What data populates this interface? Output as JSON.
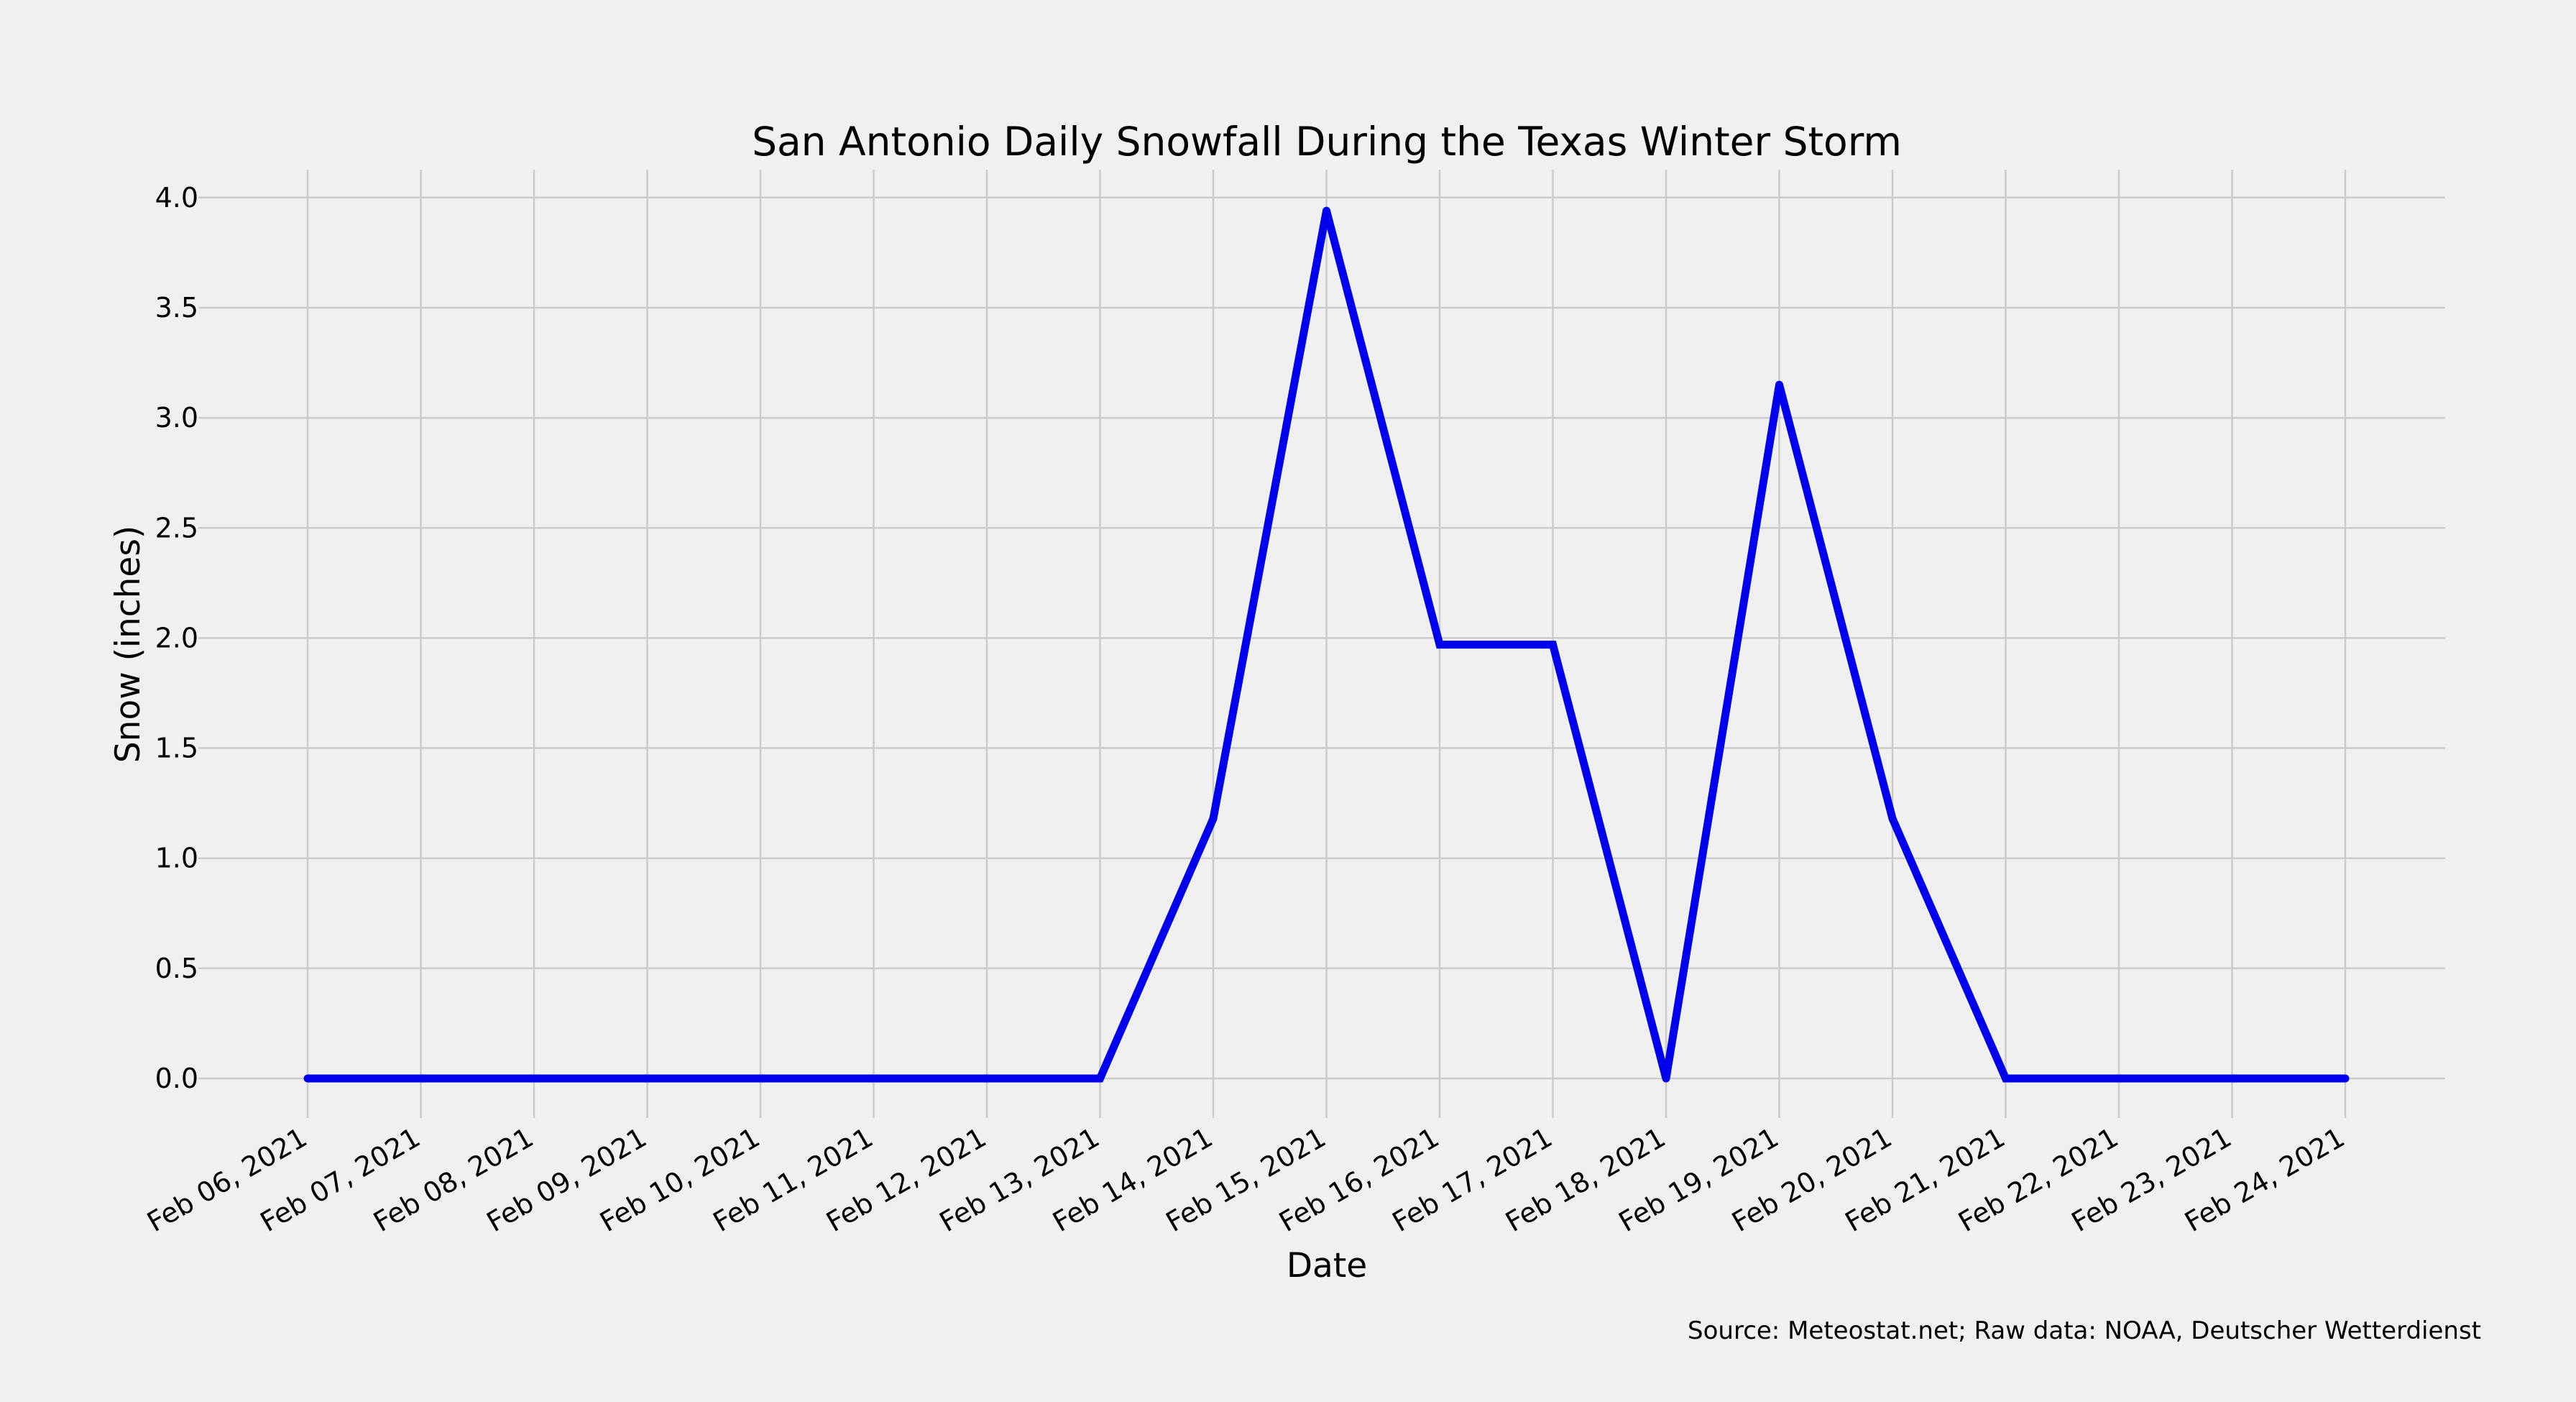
{
  "chart_data": {
    "type": "line",
    "title": "San Antonio Daily Snowfall During the Texas Winter Storm",
    "xlabel": "Date",
    "ylabel": "Snow (inches)",
    "source": "Source: Meteostat.net; Raw data: NOAA, Deutscher Wetterdienst",
    "categories": [
      "Feb 06, 2021",
      "Feb 07, 2021",
      "Feb 08, 2021",
      "Feb 09, 2021",
      "Feb 10, 2021",
      "Feb 11, 2021",
      "Feb 12, 2021",
      "Feb 13, 2021",
      "Feb 14, 2021",
      "Feb 15, 2021",
      "Feb 16, 2021",
      "Feb 17, 2021",
      "Feb 18, 2021",
      "Feb 19, 2021",
      "Feb 20, 2021",
      "Feb 21, 2021",
      "Feb 22, 2021",
      "Feb 23, 2021",
      "Feb 24, 2021"
    ],
    "series": [
      {
        "values": [
          0,
          0,
          0,
          0,
          0,
          0,
          0,
          0,
          1.18,
          3.94,
          1.97,
          1.97,
          0,
          3.15,
          1.18,
          0,
          0,
          0,
          0
        ]
      }
    ],
    "ylim": [
      -0.25,
      4.13
    ],
    "yticks": [
      0.0,
      0.5,
      1.0,
      1.5,
      2.0,
      2.5,
      3.0,
      3.5,
      4.0
    ],
    "ytick_labels": [
      "0.0",
      "0.5",
      "1.0",
      "1.5",
      "2.0",
      "2.5",
      "3.0",
      "3.5",
      "4.0"
    ],
    "grid": true,
    "colors": {
      "line": "#0000ee",
      "grid": "#cbcbcb",
      "background": "#f0f0f0"
    }
  }
}
